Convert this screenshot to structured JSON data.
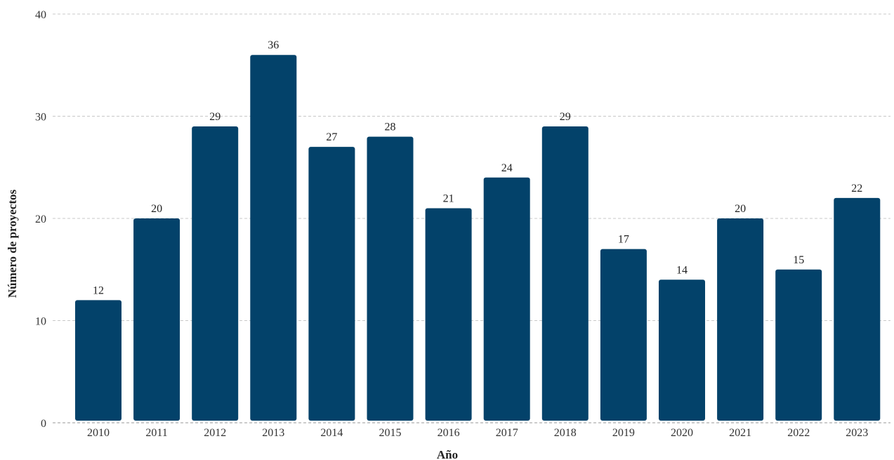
{
  "chart_data": {
    "type": "bar",
    "title": "",
    "xlabel": "Año",
    "ylabel": "Número de proyectos",
    "categories": [
      "2010",
      "2011",
      "2012",
      "2013",
      "2014",
      "2015",
      "2016",
      "2017",
      "2018",
      "2019",
      "2020",
      "2021",
      "2022",
      "2023"
    ],
    "values": [
      12,
      20,
      29,
      36,
      27,
      28,
      21,
      24,
      29,
      17,
      14,
      20,
      15,
      22
    ],
    "ylim": [
      0,
      40
    ],
    "yticks": [
      0,
      10,
      20,
      30,
      40
    ],
    "grid": "horizontal-dashed",
    "legend": "none",
    "bar_color": "#03426A",
    "data_labels": true
  }
}
